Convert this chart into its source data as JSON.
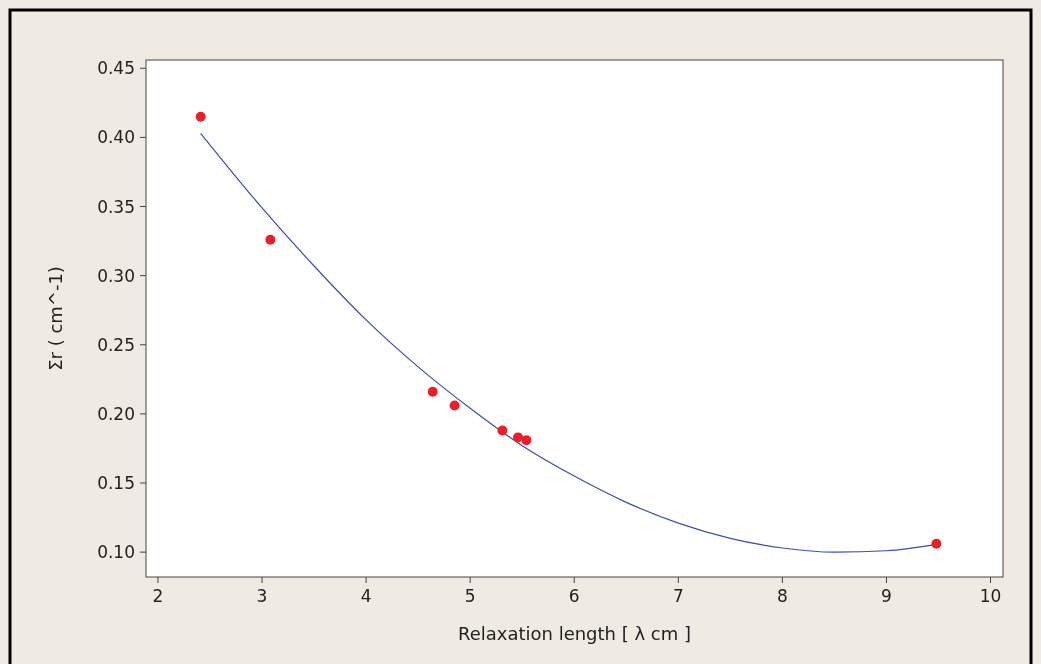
{
  "chart_data": {
    "type": "scatter",
    "xlabel": "Relaxation length [ λ cm ]",
    "ylabel": "Σr ( cm^-1)",
    "xlim": [
      1.885,
      10.12
    ],
    "ylim": [
      0.082,
      0.456
    ],
    "xticks": [
      2,
      3,
      4,
      5,
      6,
      7,
      8,
      9,
      10
    ],
    "yticks": [
      {
        "value": 0.1,
        "label": "0.10"
      },
      {
        "value": 0.15,
        "label": "0.15"
      },
      {
        "value": 0.2,
        "label": "0.20"
      },
      {
        "value": 0.25,
        "label": "0.25"
      },
      {
        "value": 0.3,
        "label": "0.30"
      },
      {
        "value": 0.35,
        "label": "0.35"
      },
      {
        "value": 0.4,
        "label": "0.40"
      },
      {
        "value": 0.45,
        "label": "0.45"
      }
    ],
    "grid": false,
    "series": [
      {
        "marker": "circle",
        "color": "#e8202a",
        "x": [
          2.41,
          3.08,
          4.64,
          4.85,
          5.31,
          5.46,
          5.54,
          9.48
        ],
        "values": [
          0.415,
          0.326,
          0.216,
          0.206,
          0.188,
          0.183,
          0.181,
          0.106
        ]
      },
      {
        "type": "line",
        "color": "#3d4fa8",
        "line_style": "solid",
        "x": [
          2.41,
          3,
          3.5,
          4,
          4.5,
          5,
          5.5,
          6,
          6.5,
          7,
          7.5,
          8,
          8.5,
          9,
          9.5
        ],
        "values": [
          0.403,
          0.349,
          0.307,
          0.268,
          0.234,
          0.204,
          0.177,
          0.155,
          0.136,
          0.121,
          0.11,
          0.103,
          0.1,
          0.101,
          0.106
        ]
      }
    ]
  }
}
